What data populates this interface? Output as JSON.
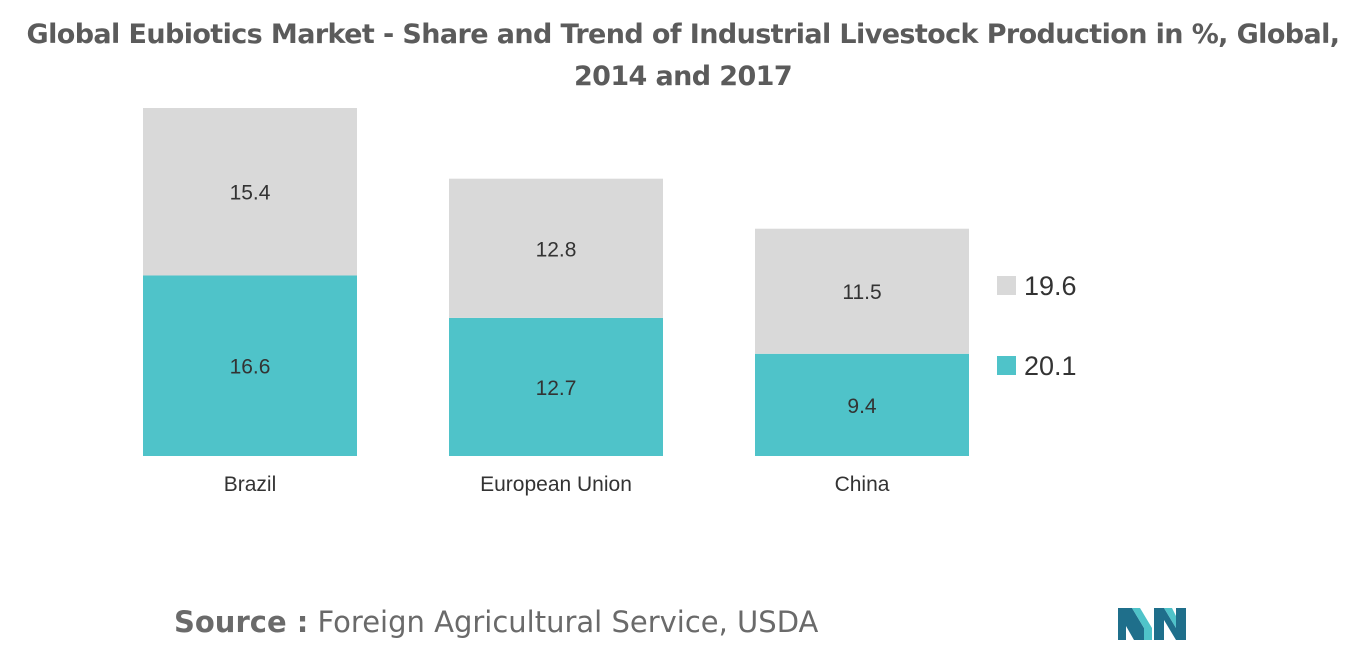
{
  "colors": {
    "series_2014": "#d9d9d9",
    "series_2017": "#4fc3c9",
    "text": "#333333",
    "title": "#5b5b5b",
    "logo_dark": "#1f6f8b",
    "logo_light": "#4fc3c9"
  },
  "chart_data": {
    "type": "bar",
    "stacked": true,
    "title": "Global Eubiotics Market - Share and Trend of Industrial Livestock Production in %, Global, 2014 and 2017",
    "xlabel": "",
    "ylabel": "",
    "categories": [
      "Brazil",
      "European Union",
      "China"
    ],
    "series": [
      {
        "name": "20.1",
        "color": "#4fc3c9",
        "values": [
          16.6,
          12.7,
          9.4
        ]
      },
      {
        "name": "19.6",
        "color": "#d9d9d9",
        "values": [
          15.4,
          12.8,
          11.5
        ]
      }
    ],
    "legend": [
      "19.6",
      "20.1"
    ],
    "legend_position": "right",
    "grid": false,
    "ylim": [
      0,
      32
    ]
  },
  "source": {
    "label": "Source :",
    "text": " Foreign Agricultural Service, USDA"
  },
  "logo": {
    "icon": "mordor-intelligence-logo-icon"
  }
}
